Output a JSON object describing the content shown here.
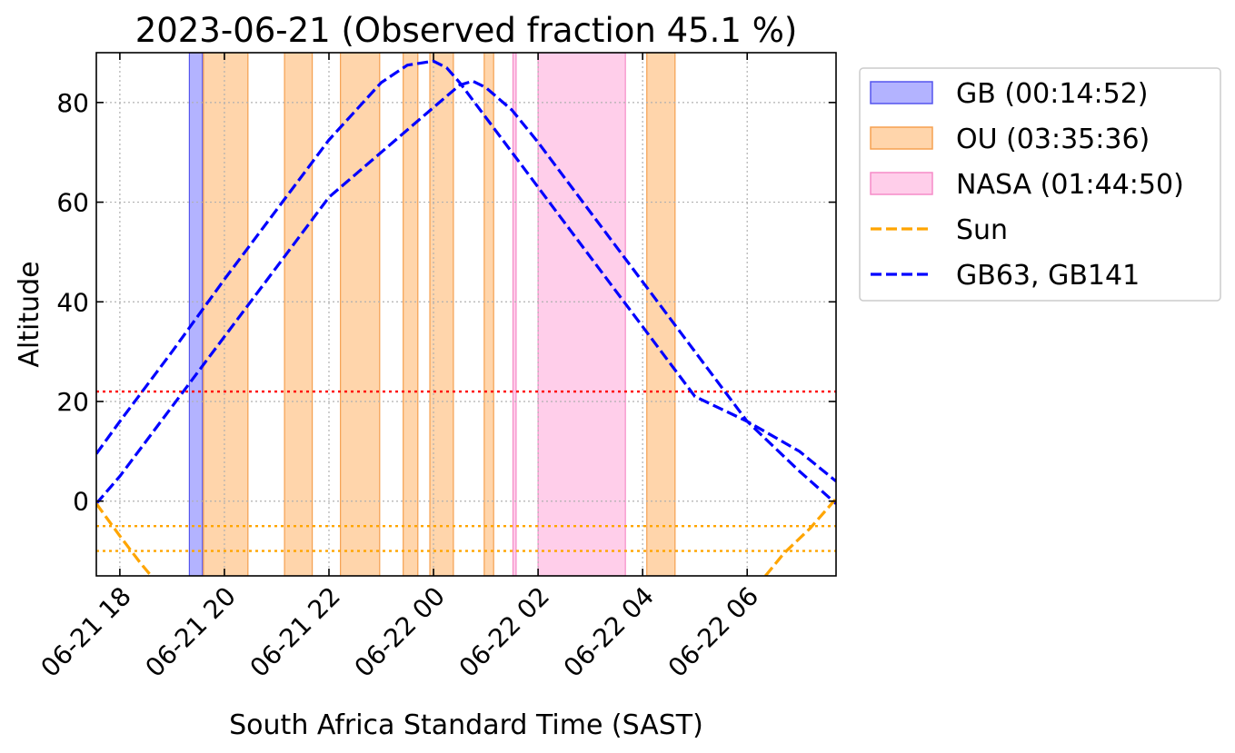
{
  "chart_data": {
    "type": "line",
    "title": "2023-06-21 (Observed fraction 45.1 %)",
    "xlabel": "South Africa Standard Time (SAST)",
    "ylabel": "Altitude",
    "x_unit": "hours after 2023-06-21 00:00 SAST",
    "xlim": [
      17.55,
      31.7
    ],
    "ylim": [
      -15,
      90
    ],
    "grid": true,
    "x_ticks": [
      {
        "value": 18,
        "label": "06-21 18"
      },
      {
        "value": 20,
        "label": "06-21 20"
      },
      {
        "value": 22,
        "label": "06-21 22"
      },
      {
        "value": 24,
        "label": "06-22 00"
      },
      {
        "value": 26,
        "label": "06-22 02"
      },
      {
        "value": 28,
        "label": "06-22 04"
      },
      {
        "value": 30,
        "label": "06-22 06"
      }
    ],
    "y_ticks": [
      {
        "value": 0,
        "label": "0"
      },
      {
        "value": 20,
        "label": "20"
      },
      {
        "value": 40,
        "label": "40"
      },
      {
        "value": 60,
        "label": "60"
      },
      {
        "value": 80,
        "label": "80"
      }
    ],
    "bands": [
      {
        "group": "GB",
        "color": "#8080ff",
        "edge": "#5555ee",
        "opacity": 0.6,
        "start": 19.33,
        "end": 19.58
      },
      {
        "group": "OU",
        "color": "#ffb366",
        "edge": "#f5a050",
        "opacity": 0.55,
        "start": 19.6,
        "end": 20.45
      },
      {
        "group": "OU",
        "color": "#ffb366",
        "edge": "#f5a050",
        "opacity": 0.55,
        "start": 21.15,
        "end": 21.68
      },
      {
        "group": "OU",
        "color": "#ffb366",
        "edge": "#f5a050",
        "opacity": 0.55,
        "start": 22.22,
        "end": 22.97
      },
      {
        "group": "OU",
        "color": "#ffb366",
        "edge": "#f5a050",
        "opacity": 0.55,
        "start": 23.42,
        "end": 23.7
      },
      {
        "group": "OU",
        "color": "#ffb366",
        "edge": "#f5a050",
        "opacity": 0.55,
        "start": 23.93,
        "end": 24.38
      },
      {
        "group": "OU",
        "color": "#ffb366",
        "edge": "#f5a050",
        "opacity": 0.55,
        "start": 24.97,
        "end": 25.15
      },
      {
        "group": "NASA",
        "color": "#ffa6d8",
        "edge": "#f58cc8",
        "opacity": 0.55,
        "start": 25.52,
        "end": 25.58
      },
      {
        "group": "NASA",
        "color": "#ffa6d8",
        "edge": "#f58cc8",
        "opacity": 0.55,
        "start": 26.0,
        "end": 27.67
      },
      {
        "group": "OU",
        "color": "#ffb366",
        "edge": "#f5a050",
        "opacity": 0.55,
        "start": 28.08,
        "end": 28.62
      }
    ],
    "hlines": [
      {
        "y": 22,
        "color": "#ff0000"
      },
      {
        "y": -5,
        "color": "#ffa500"
      },
      {
        "y": -10,
        "color": "#ffa500"
      }
    ],
    "series": [
      {
        "name": "GB63",
        "color": "#0000ff",
        "x": [
          17.55,
          18.0,
          19.0,
          20.0,
          21.0,
          22.0,
          23.0,
          23.5,
          24.0,
          24.25,
          24.5,
          25.0,
          26.0,
          27.0,
          28.0,
          29.0,
          30.0,
          31.0,
          31.7
        ],
        "y": [
          9.5,
          16.0,
          30.0,
          44.5,
          58.5,
          72.5,
          84.0,
          87.5,
          88.3,
          87.0,
          84.0,
          77.0,
          63.0,
          49.0,
          35.0,
          21.0,
          16.0,
          10.0,
          4.0
        ]
      },
      {
        "name": "GB141",
        "color": "#0000ff",
        "x": [
          17.55,
          18.0,
          19.0,
          20.0,
          21.0,
          22.0,
          23.0,
          24.0,
          24.5,
          24.75,
          25.0,
          25.5,
          26.0,
          27.0,
          28.0,
          29.0,
          30.0,
          31.0,
          31.7
        ],
        "y": [
          -0.5,
          5.0,
          19.0,
          33.0,
          47.0,
          61.0,
          70.0,
          79.0,
          83.5,
          84.3,
          83.0,
          78.5,
          72.0,
          58.0,
          44.0,
          30.0,
          16.0,
          6.0,
          -0.5
        ]
      },
      {
        "name": "Sun",
        "color": "#ffa500",
        "x": [
          17.55,
          18.0,
          18.4,
          18.6
        ],
        "y": [
          -0.5,
          -7.0,
          -12.5,
          -15.0
        ]
      },
      {
        "name": "Sun",
        "color": "#ffa500",
        "x": [
          30.35,
          30.7,
          31.2,
          31.7
        ],
        "y": [
          -15.0,
          -10.5,
          -5.5,
          0.5
        ]
      }
    ],
    "legend": {
      "position": "outside top-right",
      "entries": [
        {
          "label": "GB (00:14:52)",
          "kind": "patch",
          "color": "#8080ff",
          "edge": "#5555ee",
          "opacity": 0.6
        },
        {
          "label": "OU (03:35:36)",
          "kind": "patch",
          "color": "#ffb366",
          "edge": "#f5a050",
          "opacity": 0.55
        },
        {
          "label": "NASA (01:44:50)",
          "kind": "patch",
          "color": "#ffa6d8",
          "edge": "#f58cc8",
          "opacity": 0.55
        },
        {
          "label": "Sun",
          "kind": "line",
          "color": "#ffa500"
        },
        {
          "label": "GB63, GB141",
          "kind": "line",
          "color": "#0000ff"
        }
      ]
    }
  }
}
